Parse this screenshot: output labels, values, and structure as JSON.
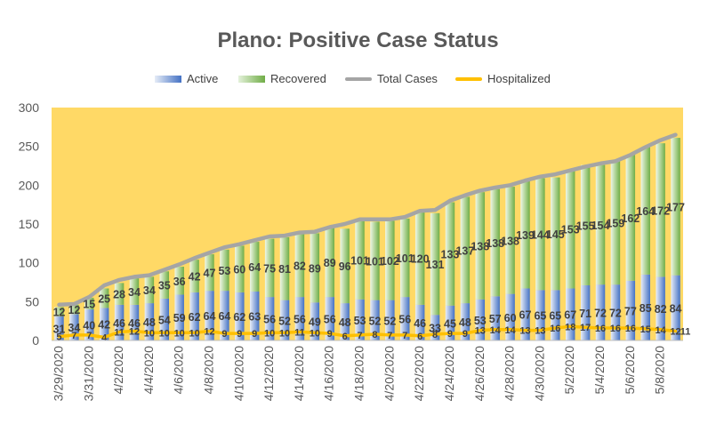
{
  "chart_data": {
    "type": "bar",
    "title": "Plano: Positive Case Status",
    "xlabel": "",
    "ylabel": "",
    "ylim": [
      0,
      300
    ],
    "y_ticks": [
      0,
      50,
      100,
      150,
      200,
      250,
      300
    ],
    "plot_background": "#FFD966",
    "grid": false,
    "legend_position": "top",
    "categories": [
      "3/29/2020",
      "3/30/2020",
      "3/31/2020",
      "4/1/2020",
      "4/2/2020",
      "4/3/2020",
      "4/4/2020",
      "4/5/2020",
      "4/6/2020",
      "4/7/2020",
      "4/8/2020",
      "4/9/2020",
      "4/10/2020",
      "4/11/2020",
      "4/12/2020",
      "4/13/2020",
      "4/14/2020",
      "4/15/2020",
      "4/16/2020",
      "4/17/2020",
      "4/18/2020",
      "4/19/2020",
      "4/20/2020",
      "4/21/2020",
      "4/22/2020",
      "4/23/2020",
      "4/24/2020",
      "4/25/2020",
      "4/26/2020",
      "4/27/2020",
      "4/28/2020",
      "4/29/2020",
      "4/30/2020",
      "5/1/2020",
      "5/2/2020",
      "5/3/2020",
      "5/4/2020",
      "5/5/2020",
      "5/6/2020",
      "5/7/2020",
      "5/8/2020",
      "5/9/2020"
    ],
    "x_tick_labels": [
      "3/29/2020",
      "3/31/2020",
      "4/2/2020",
      "4/4/2020",
      "4/6/2020",
      "4/8/2020",
      "4/10/2020",
      "4/12/2020",
      "4/14/2020",
      "4/16/2020",
      "4/18/2020",
      "4/20/2020",
      "4/22/2020",
      "4/24/2020",
      "4/26/2020",
      "4/28/2020",
      "4/30/2020",
      "5/2/2020",
      "5/4/2020",
      "5/6/2020",
      "5/8/2020"
    ],
    "series": [
      {
        "name": "Active",
        "kind": "stacked-bar",
        "color": "#4472C4",
        "values": [
          31,
          34,
          40,
          42,
          46,
          46,
          48,
          54,
          59,
          62,
          64,
          64,
          62,
          63,
          56,
          52,
          56,
          49,
          56,
          48,
          53,
          52,
          52,
          56,
          46,
          33,
          45,
          48,
          53,
          57,
          60,
          67,
          65,
          65,
          67,
          71,
          72,
          72,
          77,
          85,
          82,
          84
        ]
      },
      {
        "name": "Recovered",
        "kind": "stacked-bar",
        "color": "#70AD47",
        "values": [
          12,
          12,
          15,
          25,
          28,
          34,
          34,
          35,
          36,
          42,
          47,
          53,
          60,
          64,
          75,
          81,
          82,
          89,
          89,
          96,
          101,
          101,
          102,
          101,
          120,
          131,
          133,
          137,
          138,
          138,
          138,
          139,
          144,
          145,
          153,
          155,
          154,
          159,
          162,
          164,
          172,
          177
        ]
      },
      {
        "name": "Total Cases",
        "kind": "line",
        "color": "#A5A5A5",
        "values": [
          46,
          47,
          56,
          71,
          78,
          82,
          84,
          91,
          98,
          106,
          113,
          120,
          124,
          129,
          134,
          135,
          139,
          140,
          146,
          150,
          156,
          156,
          156,
          159,
          167,
          168,
          180,
          187,
          193,
          197,
          200,
          206,
          211,
          214,
          219,
          224,
          228,
          231,
          239,
          249,
          258,
          265
        ]
      },
      {
        "name": "Hospitalized",
        "kind": "line",
        "color": "#FFC000",
        "values": [
          5,
          7,
          7,
          4,
          11,
          12,
          10,
          10,
          10,
          10,
          12,
          9,
          9,
          9,
          10,
          10,
          11,
          10,
          9,
          6,
          7,
          8,
          7,
          7,
          6,
          8,
          9,
          9,
          13,
          14,
          14,
          13,
          13,
          16,
          18,
          17,
          16,
          16,
          16,
          15,
          14,
          12
        ]
      }
    ],
    "extra_labels": [
      "11"
    ]
  }
}
